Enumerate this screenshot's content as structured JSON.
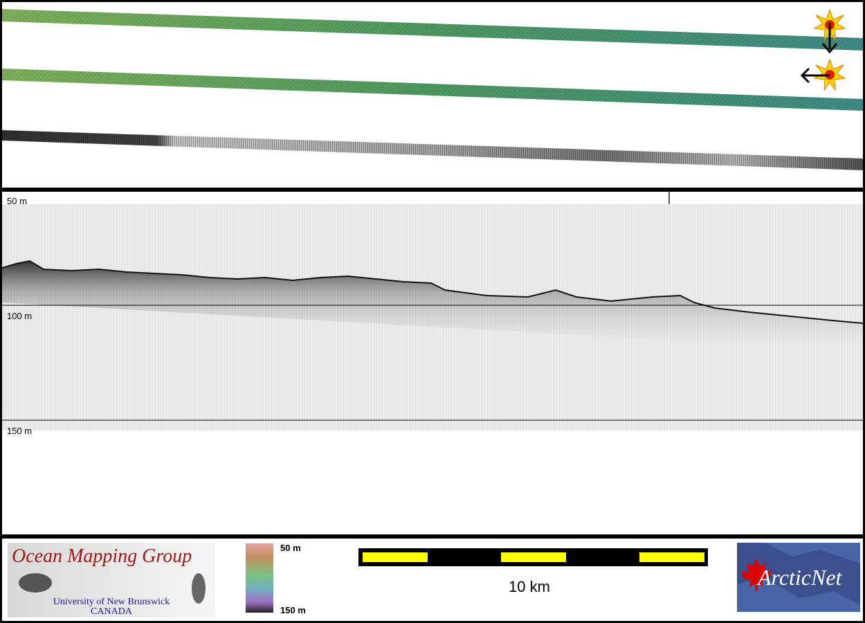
{
  "depth_labels": {
    "d50": "50 m",
    "d100": "100 m",
    "d150": "150 m"
  },
  "logo_left": {
    "title": "Ocean Mapping Group",
    "line1": "University of New Brunswick",
    "line2": "CANADA"
  },
  "colorbar": {
    "top_label": "50 m",
    "bottom_label": "150 m"
  },
  "scale_bar": {
    "label": "10 km"
  },
  "logo_right": {
    "text": "ArcticNet"
  },
  "colors": {
    "swath_green": "#6da84f",
    "swath_teal": "#3f8c86",
    "scale_yellow": "#ffff00",
    "omg_red": "#a01818",
    "omg_blue": "#1a1a8c",
    "arcticnet_bg": "#3a4f8c",
    "maple_red": "#e00000"
  }
}
